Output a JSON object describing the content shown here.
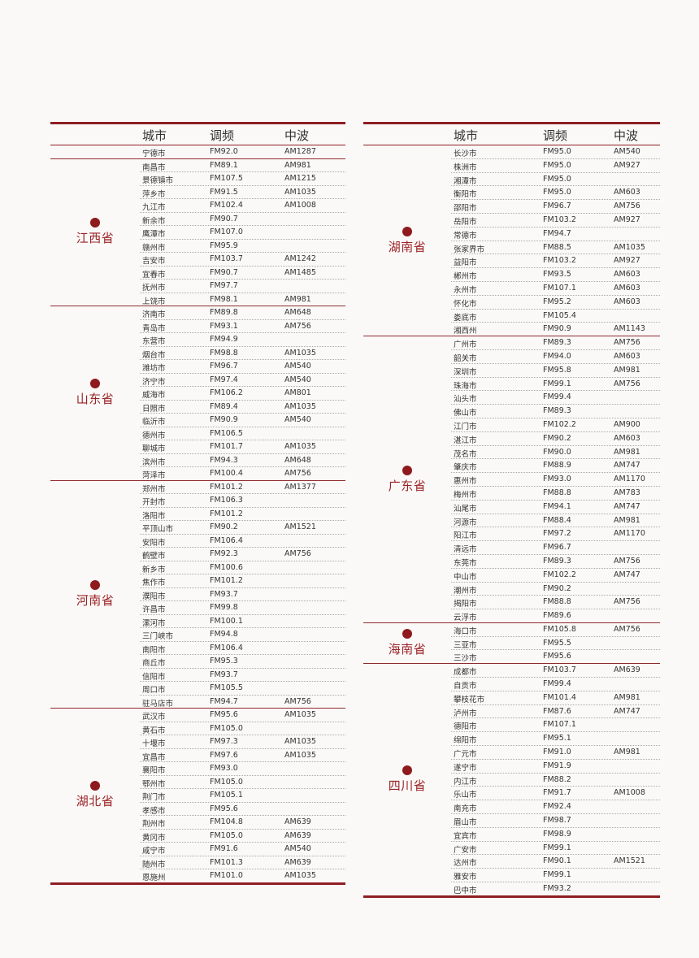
{
  "headers": {
    "city": "城市",
    "fm": "调频",
    "am": "中波"
  },
  "colors": {
    "accent": "#8e1f22",
    "province_text": "#9a2326"
  },
  "left_groups": [
    {
      "province": "",
      "rows": [
        [
          "宁德市",
          "FM92.0",
          "AM1287"
        ]
      ]
    },
    {
      "province": "江西省",
      "rows": [
        [
          "南昌市",
          "FM89.1",
          "AM981"
        ],
        [
          "景德镇市",
          "FM107.5",
          "AM1215"
        ],
        [
          "萍乡市",
          "FM91.5",
          "AM1035"
        ],
        [
          "九江市",
          "FM102.4",
          "AM1008"
        ],
        [
          "新余市",
          "FM90.7",
          ""
        ],
        [
          "鹰潭市",
          "FM107.0",
          ""
        ],
        [
          "赣州市",
          "FM95.9",
          ""
        ],
        [
          "吉安市",
          "FM103.7",
          "AM1242"
        ],
        [
          "宜春市",
          "FM90.7",
          "AM1485"
        ],
        [
          "抚州市",
          "FM97.7",
          ""
        ],
        [
          "上饶市",
          "FM98.1",
          "AM981"
        ]
      ]
    },
    {
      "province": "山东省",
      "rows": [
        [
          "济南市",
          "FM89.8",
          "AM648"
        ],
        [
          "青岛市",
          "FM93.1",
          "AM756"
        ],
        [
          "东营市",
          "FM94.9",
          ""
        ],
        [
          "烟台市",
          "FM98.8",
          "AM1035"
        ],
        [
          "潍坊市",
          "FM96.7",
          "AM540"
        ],
        [
          "济宁市",
          "FM97.4",
          "AM540"
        ],
        [
          "威海市",
          "FM106.2",
          "AM801"
        ],
        [
          "日照市",
          "FM89.4",
          "AM1035"
        ],
        [
          "临沂市",
          "FM90.9",
          "AM540"
        ],
        [
          "德州市",
          "FM106.5",
          ""
        ],
        [
          "聊城市",
          "FM101.7",
          "AM1035"
        ],
        [
          "滨州市",
          "FM94.3",
          "AM648"
        ],
        [
          "菏泽市",
          "FM100.4",
          "AM756"
        ]
      ]
    },
    {
      "province": "河南省",
      "rows": [
        [
          "郑州市",
          "FM101.2",
          "AM1377"
        ],
        [
          "开封市",
          "FM106.3",
          ""
        ],
        [
          "洛阳市",
          "FM101.2",
          ""
        ],
        [
          "平顶山市",
          "FM90.2",
          "AM1521"
        ],
        [
          "安阳市",
          "FM106.4",
          ""
        ],
        [
          "鹤壁市",
          "FM92.3",
          "AM756"
        ],
        [
          "新乡市",
          "FM100.6",
          ""
        ],
        [
          "焦作市",
          "FM101.2",
          ""
        ],
        [
          "濮阳市",
          "FM93.7",
          ""
        ],
        [
          "许昌市",
          "FM99.8",
          ""
        ],
        [
          "漯河市",
          "FM100.1",
          ""
        ],
        [
          "三门峡市",
          "FM94.8",
          ""
        ],
        [
          "南阳市",
          "FM106.4",
          ""
        ],
        [
          "商丘市",
          "FM95.3",
          ""
        ],
        [
          "信阳市",
          "FM93.7",
          ""
        ],
        [
          "周口市",
          "FM105.5",
          ""
        ],
        [
          "驻马店市",
          "FM94.7",
          "AM756"
        ]
      ]
    },
    {
      "province": "湖北省",
      "rows": [
        [
          "武汉市",
          "FM95.6",
          "AM1035"
        ],
        [
          "黄石市",
          "FM105.0",
          ""
        ],
        [
          "十堰市",
          "FM97.3",
          "AM1035"
        ],
        [
          "宜昌市",
          "FM97.6",
          "AM1035"
        ],
        [
          "襄阳市",
          "FM93.0",
          ""
        ],
        [
          "鄂州市",
          "FM105.0",
          ""
        ],
        [
          "荆门市",
          "FM105.1",
          ""
        ],
        [
          "孝感市",
          "FM95.6",
          ""
        ],
        [
          "荆州市",
          "FM104.8",
          "AM639"
        ],
        [
          "黄冈市",
          "FM105.0",
          "AM639"
        ],
        [
          "咸宁市",
          "FM91.6",
          "AM540"
        ],
        [
          "随州市",
          "FM101.3",
          "AM639"
        ],
        [
          "恩施州",
          "FM101.0",
          "AM1035"
        ]
      ]
    }
  ],
  "right_groups": [
    {
      "province": "湖南省",
      "rows": [
        [
          "长沙市",
          "FM95.0",
          "AM540"
        ],
        [
          "株洲市",
          "FM95.0",
          "AM927"
        ],
        [
          "湘潭市",
          "FM95.0",
          ""
        ],
        [
          "衡阳市",
          "FM95.0",
          "AM603"
        ],
        [
          "邵阳市",
          "FM96.7",
          "AM756"
        ],
        [
          "岳阳市",
          "FM103.2",
          "AM927"
        ],
        [
          "常德市",
          "FM94.7",
          ""
        ],
        [
          "张家界市",
          "FM88.5",
          "AM1035"
        ],
        [
          "益阳市",
          "FM103.2",
          "AM927"
        ],
        [
          "郴州市",
          "FM93.5",
          "AM603"
        ],
        [
          "永州市",
          "FM107.1",
          "AM603"
        ],
        [
          "怀化市",
          "FM95.2",
          "AM603"
        ],
        [
          "娄底市",
          "FM105.4",
          ""
        ],
        [
          "湘西州",
          "FM90.9",
          "AM1143"
        ]
      ]
    },
    {
      "province": "广东省",
      "rows": [
        [
          "广州市",
          "FM89.3",
          "AM756"
        ],
        [
          "韶关市",
          "FM94.0",
          "AM603"
        ],
        [
          "深圳市",
          "FM95.8",
          "AM981"
        ],
        [
          "珠海市",
          "FM99.1",
          "AM756"
        ],
        [
          "汕头市",
          "FM99.4",
          ""
        ],
        [
          "佛山市",
          "FM89.3",
          ""
        ],
        [
          "江门市",
          "FM102.2",
          "AM900"
        ],
        [
          "湛江市",
          "FM90.2",
          "AM603"
        ],
        [
          "茂名市",
          "FM90.0",
          "AM981"
        ],
        [
          "肇庆市",
          "FM88.9",
          "AM747"
        ],
        [
          "惠州市",
          "FM93.0",
          "AM1170"
        ],
        [
          "梅州市",
          "FM88.8",
          "AM783"
        ],
        [
          "汕尾市",
          "FM94.1",
          "AM747"
        ],
        [
          "河源市",
          "FM88.4",
          "AM981"
        ],
        [
          "阳江市",
          "FM97.2",
          "AM1170"
        ],
        [
          "清远市",
          "FM96.7",
          ""
        ],
        [
          "东莞市",
          "FM89.3",
          "AM756"
        ],
        [
          "中山市",
          "FM102.2",
          "AM747"
        ],
        [
          "潮州市",
          "FM90.2",
          ""
        ],
        [
          "揭阳市",
          "FM88.8",
          "AM756"
        ],
        [
          "云浮市",
          "FM89.6",
          ""
        ]
      ]
    },
    {
      "province": "海南省",
      "rows": [
        [
          "海口市",
          "FM105.8",
          "AM756"
        ],
        [
          "三亚市",
          "FM95.5",
          ""
        ],
        [
          "三沙市",
          "FM95.6",
          ""
        ]
      ]
    },
    {
      "province": "四川省",
      "rows": [
        [
          "成都市",
          "FM103.7",
          "AM639"
        ],
        [
          "自贡市",
          "FM99.4",
          ""
        ],
        [
          "攀枝花市",
          "FM101.4",
          "AM981"
        ],
        [
          "泸州市",
          "FM87.6",
          "AM747"
        ],
        [
          "德阳市",
          "FM107.1",
          ""
        ],
        [
          "绵阳市",
          "FM95.1",
          ""
        ],
        [
          "广元市",
          "FM91.0",
          "AM981"
        ],
        [
          "遂宁市",
          "FM91.9",
          ""
        ],
        [
          "内江市",
          "FM88.2",
          ""
        ],
        [
          "乐山市",
          "FM91.7",
          "AM1008"
        ],
        [
          "南充市",
          "FM92.4",
          ""
        ],
        [
          "眉山市",
          "FM98.7",
          ""
        ],
        [
          "宜宾市",
          "FM98.9",
          ""
        ],
        [
          "广安市",
          "FM99.1",
          ""
        ],
        [
          "达州市",
          "FM90.1",
          "AM1521"
        ],
        [
          "雅安市",
          "FM99.1",
          ""
        ],
        [
          "巴中市",
          "FM93.2",
          ""
        ]
      ]
    }
  ]
}
